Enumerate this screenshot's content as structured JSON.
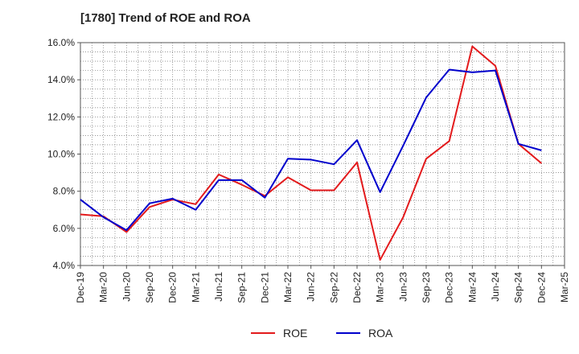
{
  "chart_data": {
    "type": "line",
    "title": "[1780]  Trend of ROE and ROA",
    "xlabel": "",
    "ylabel": "",
    "x": [
      "Dec-19",
      "Mar-20",
      "Jun-20",
      "Sep-20",
      "Dec-20",
      "Mar-21",
      "Jun-21",
      "Sep-21",
      "Dec-21",
      "Mar-22",
      "Jun-22",
      "Sep-22",
      "Dec-22",
      "Mar-23",
      "Jun-23",
      "Sep-23",
      "Dec-23",
      "Mar-24",
      "Jun-24",
      "Sep-24",
      "Dec-24",
      "Mar-25"
    ],
    "ylim": [
      4.0,
      16.0
    ],
    "yticks": [
      4.0,
      6.0,
      8.0,
      10.0,
      12.0,
      14.0,
      16.0
    ],
    "ytick_labels": [
      "4.0%",
      "6.0%",
      "8.0%",
      "10.0%",
      "12.0%",
      "14.0%",
      "16.0%"
    ],
    "grid": true,
    "legend_position": "bottom-center",
    "series": [
      {
        "name": "ROE",
        "color": "#e31a1c",
        "values": [
          6.75,
          6.65,
          5.8,
          7.15,
          7.55,
          7.3,
          8.9,
          8.35,
          7.75,
          8.75,
          8.05,
          8.05,
          9.55,
          4.3,
          6.6,
          9.75,
          10.7,
          15.8,
          14.75,
          10.55,
          9.5,
          null
        ]
      },
      {
        "name": "ROA",
        "color": "#0000cc",
        "values": [
          7.55,
          6.6,
          5.9,
          7.35,
          7.6,
          7.0,
          8.6,
          8.6,
          7.65,
          9.75,
          9.7,
          9.45,
          10.75,
          7.95,
          10.45,
          13.05,
          14.55,
          14.4,
          14.5,
          10.55,
          10.2,
          null
        ]
      }
    ]
  }
}
